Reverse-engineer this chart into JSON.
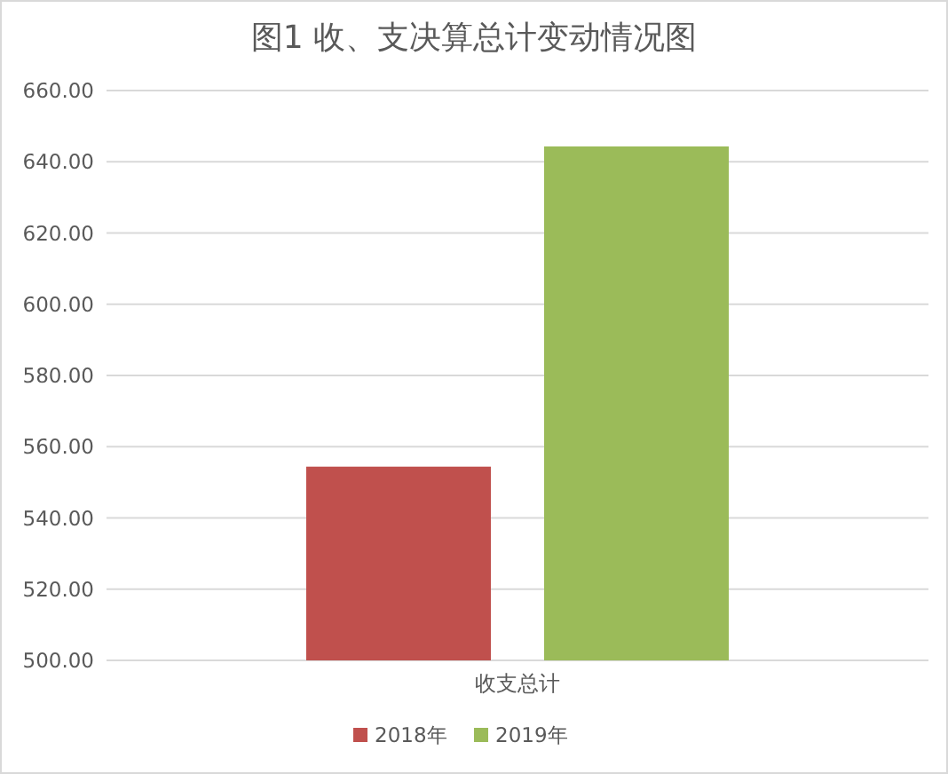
{
  "chart_data": {
    "type": "bar",
    "title": "图1 收、支决算总计变动情况图",
    "categories": [
      "收支总计"
    ],
    "series": [
      {
        "name": "2018年",
        "color": "#c0504d",
        "values": [
          554.4
        ]
      },
      {
        "name": "2019年",
        "color": "#9bbb59",
        "values": [
          644.3
        ]
      }
    ],
    "ylim": [
      500,
      660
    ],
    "yticks": [
      {
        "value": 500,
        "label": "500.00"
      },
      {
        "value": 520,
        "label": "520.00"
      },
      {
        "value": 540,
        "label": "540.00"
      },
      {
        "value": 560,
        "label": "560.00"
      },
      {
        "value": 580,
        "label": "580.00"
      },
      {
        "value": 600,
        "label": "600.00"
      },
      {
        "value": 620,
        "label": "620.00"
      },
      {
        "value": 640,
        "label": "640.00"
      },
      {
        "value": 660,
        "label": "660.00"
      }
    ],
    "grid": "y",
    "legend": "bottom"
  }
}
